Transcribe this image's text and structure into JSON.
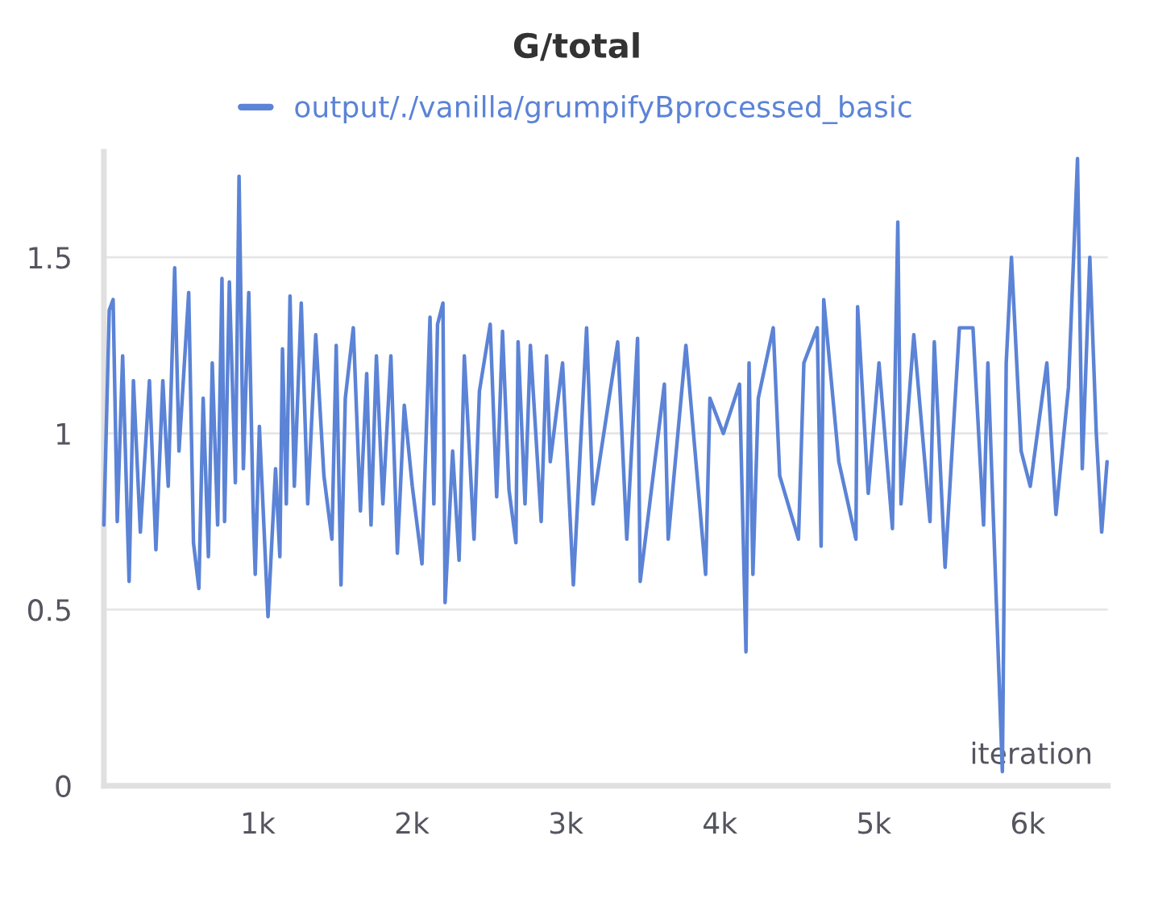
{
  "chart_data": {
    "type": "line",
    "title": "G/total",
    "xlabel": "iteration",
    "xlim": [
      0,
      6520
    ],
    "ylim": [
      0,
      1.8
    ],
    "xticks": [
      {
        "value": 1000,
        "label": "1k"
      },
      {
        "value": 2000,
        "label": "2k"
      },
      {
        "value": 3000,
        "label": "3k"
      },
      {
        "value": 4000,
        "label": "4k"
      },
      {
        "value": 5000,
        "label": "5k"
      },
      {
        "value": 6000,
        "label": "6k"
      }
    ],
    "yticks": [
      0,
      0.5,
      1,
      1.5
    ],
    "grid": "y",
    "legend": "top",
    "marker": "none",
    "line_style": "solid",
    "series": [
      {
        "name": "output/./vanilla/grumpifyBprocessed_basic",
        "color": "#5b83d6",
        "x": [
          0,
          35,
          60,
          87,
          122,
          164,
          192,
          237,
          296,
          338,
          383,
          418,
          460,
          488,
          551,
          582,
          617,
          645,
          679,
          704,
          739,
          767,
          784,
          815,
          854,
          878,
          906,
          941,
          969,
          983,
          1010,
          1066,
          1115,
          1143,
          1160,
          1185,
          1209,
          1237,
          1282,
          1324,
          1376,
          1429,
          1481,
          1509,
          1540,
          1568,
          1620,
          1666,
          1707,
          1735,
          1770,
          1812,
          1864,
          1906,
          1951,
          2003,
          2066,
          2118,
          2143,
          2167,
          2202,
          2216,
          2265,
          2307,
          2341,
          2404,
          2439,
          2509,
          2551,
          2589,
          2631,
          2676,
          2690,
          2735,
          2770,
          2840,
          2875,
          2899,
          2979,
          3049,
          3135,
          3177,
          3337,
          3396,
          3466,
          3483,
          3640,
          3665,
          3780,
          3908,
          3936,
          4023,
          4128,
          4170,
          4190,
          4215,
          4250,
          4347,
          4389,
          4511,
          4546,
          4633,
          4658,
          4675,
          4773,
          4884,
          4895,
          4964,
          5034,
          5121,
          5156,
          5177,
          5260,
          5365,
          5393,
          5463,
          5556,
          5644,
          5713,
          5741,
          5835,
          5860,
          5894,
          5957,
          6016,
          6124,
          6183,
          6264,
          6323,
          6354,
          6403,
          6445,
          6480,
          6515
        ],
        "values": [
          0.74,
          1.35,
          1.38,
          0.75,
          1.22,
          0.58,
          1.15,
          0.72,
          1.15,
          0.67,
          1.15,
          0.85,
          1.47,
          0.95,
          1.4,
          0.69,
          0.56,
          1.1,
          0.65,
          1.2,
          0.74,
          1.44,
          0.75,
          1.43,
          0.86,
          1.73,
          0.9,
          1.4,
          0.79,
          0.6,
          1.02,
          0.48,
          0.9,
          0.65,
          1.24,
          0.8,
          1.39,
          0.85,
          1.37,
          0.8,
          1.28,
          0.88,
          0.7,
          1.25,
          0.57,
          1.1,
          1.3,
          0.78,
          1.17,
          0.74,
          1.22,
          0.8,
          1.22,
          0.66,
          1.08,
          0.85,
          0.63,
          1.33,
          0.8,
          1.31,
          1.37,
          0.52,
          0.95,
          0.64,
          1.22,
          0.7,
          1.12,
          1.31,
          0.82,
          1.29,
          0.84,
          0.69,
          1.26,
          0.8,
          1.25,
          0.75,
          1.22,
          0.92,
          1.2,
          0.57,
          1.3,
          0.8,
          1.26,
          0.7,
          1.27,
          0.58,
          1.14,
          0.7,
          1.25,
          0.6,
          1.1,
          1.0,
          1.14,
          0.38,
          1.2,
          0.6,
          1.1,
          1.3,
          0.88,
          0.7,
          1.2,
          1.3,
          0.68,
          1.38,
          0.92,
          0.7,
          1.36,
          0.83,
          1.2,
          0.73,
          1.6,
          0.8,
          1.28,
          0.75,
          1.26,
          0.62,
          1.3,
          1.3,
          0.74,
          1.2,
          0.04,
          1.2,
          1.5,
          0.95,
          0.85,
          1.2,
          0.77,
          1.13,
          1.78,
          0.9,
          1.5,
          1.0,
          0.72,
          0.92
        ]
      }
    ]
  }
}
